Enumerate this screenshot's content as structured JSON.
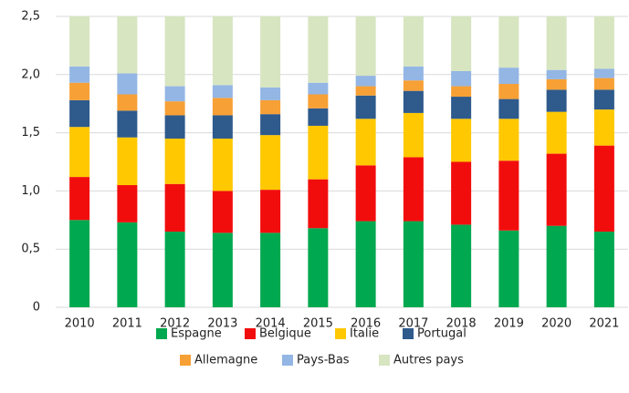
{
  "chart_data": {
    "type": "stacked_bar",
    "categories": [
      "2010",
      "2011",
      "2012",
      "2013",
      "2014",
      "2015",
      "2016",
      "2017",
      "2018",
      "2019",
      "2020",
      "2021"
    ],
    "series": [
      {
        "name": "Espagne",
        "color": "#00a84f",
        "values": [
          0.75,
          0.73,
          0.65,
          0.64,
          0.64,
          0.68,
          0.74,
          0.74,
          0.71,
          0.66,
          0.7,
          0.65
        ]
      },
      {
        "name": "Belgique",
        "color": "#f20d0d",
        "values": [
          0.37,
          0.32,
          0.41,
          0.36,
          0.37,
          0.42,
          0.48,
          0.55,
          0.54,
          0.6,
          0.62,
          0.74
        ]
      },
      {
        "name": "Italie",
        "color": "#ffc800",
        "values": [
          0.43,
          0.41,
          0.39,
          0.45,
          0.47,
          0.46,
          0.4,
          0.38,
          0.37,
          0.36,
          0.36,
          0.31
        ]
      },
      {
        "name": "Portugal",
        "color": "#2e5a8c",
        "values": [
          0.23,
          0.23,
          0.2,
          0.2,
          0.18,
          0.15,
          0.2,
          0.19,
          0.19,
          0.17,
          0.19,
          0.17
        ]
      },
      {
        "name": "Allemagne",
        "color": "#f7a035",
        "values": [
          0.15,
          0.14,
          0.12,
          0.15,
          0.12,
          0.12,
          0.08,
          0.09,
          0.09,
          0.13,
          0.09,
          0.1
        ]
      },
      {
        "name": "Pays-Bas",
        "color": "#93b6e4",
        "values": [
          0.14,
          0.18,
          0.13,
          0.11,
          0.11,
          0.1,
          0.09,
          0.12,
          0.13,
          0.14,
          0.08,
          0.08
        ]
      },
      {
        "name": "Autres pays",
        "color": "#d7e5c0",
        "values": [
          0.43,
          0.49,
          0.6,
          0.59,
          0.61,
          0.57,
          0.51,
          0.43,
          0.47,
          0.44,
          0.46,
          0.45
        ]
      }
    ],
    "ylim": [
      0,
      2.5
    ],
    "yticks": [
      0,
      {
        "value": 0.5,
        "label": "0,5"
      },
      {
        "value": 1.0,
        "label": "1,0"
      },
      {
        "value": 1.5,
        "label": "1,5"
      },
      {
        "value": 2.0,
        "label": "2,0"
      },
      {
        "value": 2.5,
        "label": "2,5"
      }
    ],
    "grid": true
  }
}
